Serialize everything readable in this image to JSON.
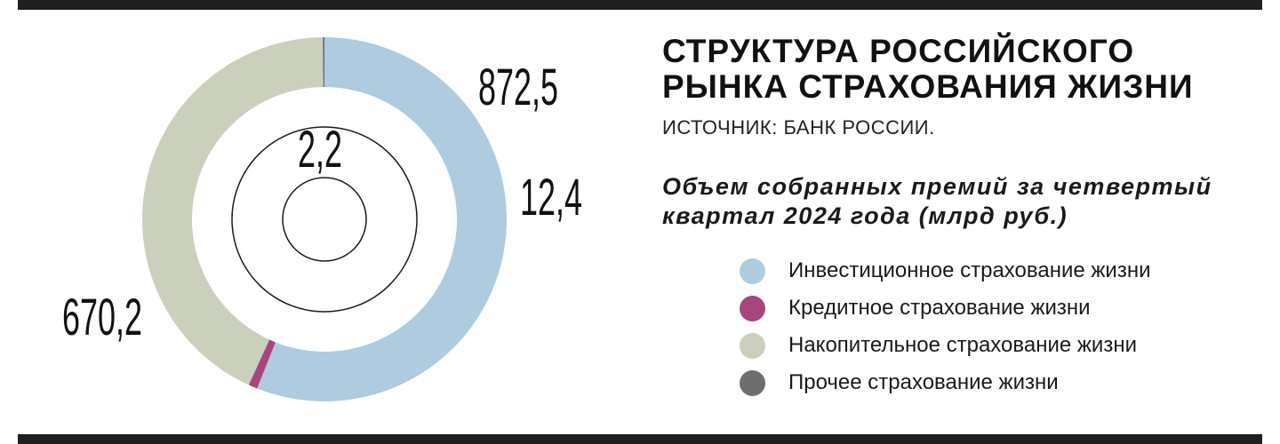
{
  "header": {
    "title_lines": [
      "СТРУКТУРА РОССИЙСКОГО",
      "РЫНКА СТРАХОВАНИЯ ЖИЗНИ"
    ],
    "source": "ИСТОЧНИК: БАНК РОССИИ.",
    "subtitle_lines": [
      "Объем собранных премий за четвертый",
      "квартал 2024 года (млрд руб.)"
    ]
  },
  "chart_data": {
    "type": "pie",
    "variant": "donut",
    "start": "top",
    "direction": "clockwise",
    "unit": "млрд руб.",
    "series": [
      {
        "name": "Инвестиционное страхование жизни",
        "value": 872.5,
        "label": "872,5",
        "color": "#aecbdf"
      },
      {
        "name": "Кредитное страхование жизни",
        "value": 12.4,
        "label": "12,4",
        "color": "#a8457c"
      },
      {
        "name": "Накопительное страхование жизни",
        "value": 670.2,
        "label": "670,2",
        "color": "#cbd0bd"
      },
      {
        "name": "Прочее страхование жизни",
        "value": 2.2,
        "label": "2,2",
        "color": "#6e6e6e"
      }
    ],
    "legend_position": "right"
  }
}
